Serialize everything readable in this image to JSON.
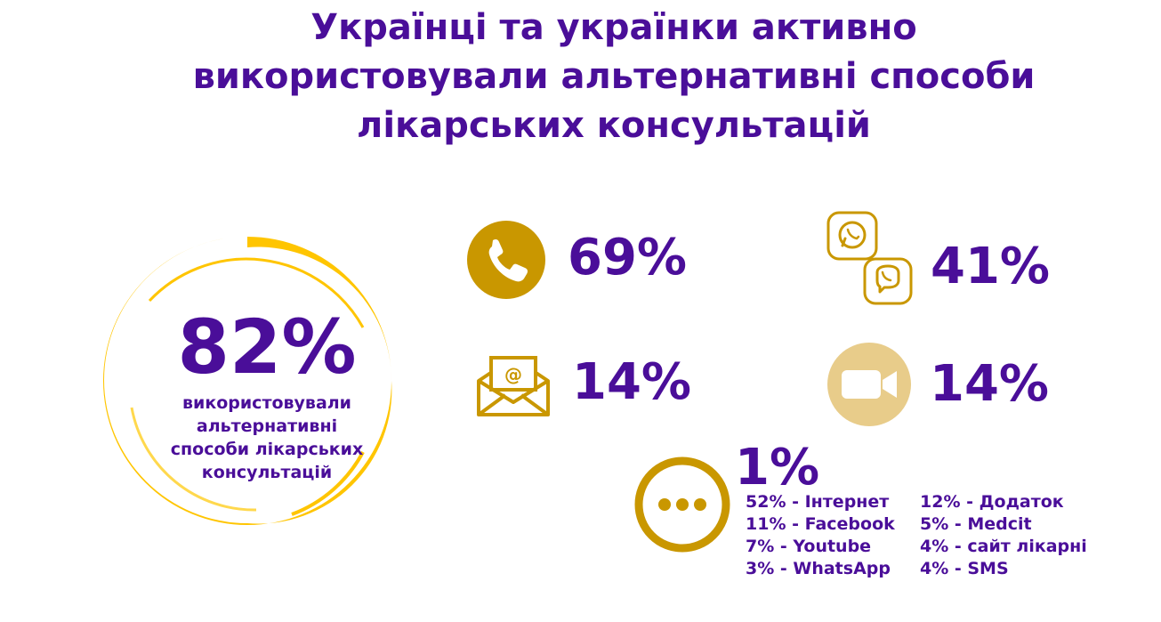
{
  "title": {
    "line1": "Українці та українки активно",
    "line2": "використовували альтернативні способи",
    "line3": "лікарських консультацій"
  },
  "main_stat": {
    "percent": "82%",
    "label_line1": "використовували",
    "label_line2": "альтернативні",
    "label_line3": "способи лікарських",
    "label_line4": "консультацій"
  },
  "colors": {
    "accent_purple": "#4a0e99",
    "gold": "#c99700",
    "yellow": "#ffc500",
    "light_gold": "#e8cc8a"
  },
  "stats": {
    "phone": {
      "icon": "phone-icon",
      "percent": "69%"
    },
    "messengers": {
      "icon": "whatsapp-viber-icon",
      "percent": "41%"
    },
    "email": {
      "icon": "email-icon",
      "percent": "14%"
    },
    "video": {
      "icon": "video-camera-icon",
      "percent": "14%"
    },
    "other": {
      "icon": "more-dots-icon",
      "percent": "1%"
    }
  },
  "other_breakdown": [
    "52%  - Інтернет",
    "12% - Додаток",
    "11% - Facebook",
    "5% - Medcit",
    "7% - Youtube",
    "4% - сайт лікарні",
    "3% - WhatsApp",
    "4% - SMS"
  ]
}
